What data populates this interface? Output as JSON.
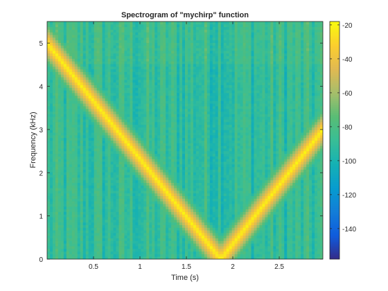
{
  "chart_data": {
    "type": "heatmap",
    "title": "Spectrogram of \"mychirp\" function",
    "xlabel": "Time (s)",
    "ylabel": "Frequency (kHz)",
    "xlim": [
      0.0,
      2.97
    ],
    "ylim": [
      0,
      5.5
    ],
    "xticks": [
      0.5,
      1,
      1.5,
      2,
      2.5
    ],
    "xtick_labels": [
      "0.5",
      "1",
      "1.5",
      "2",
      "2.5"
    ],
    "yticks": [
      0,
      1,
      2,
      3,
      4,
      5
    ],
    "ytick_labels": [
      "0",
      "1",
      "2",
      "3",
      "4",
      "5"
    ],
    "colorbar": {
      "colormap": "parula",
      "range": [
        -158,
        -18
      ],
      "ticks": [
        -140,
        -120,
        -100,
        -80,
        -60,
        -40,
        -20
      ],
      "tick_labels": [
        "-140",
        "-120",
        "-100",
        "-80",
        "-60",
        "-40",
        "-20"
      ]
    },
    "ridge": {
      "t": [
        0.0,
        1.87,
        2.97
      ],
      "f_khz": [
        5.0,
        0.0,
        3.0
      ],
      "level_db": -20
    },
    "background_level_db": -90,
    "grid": false
  }
}
